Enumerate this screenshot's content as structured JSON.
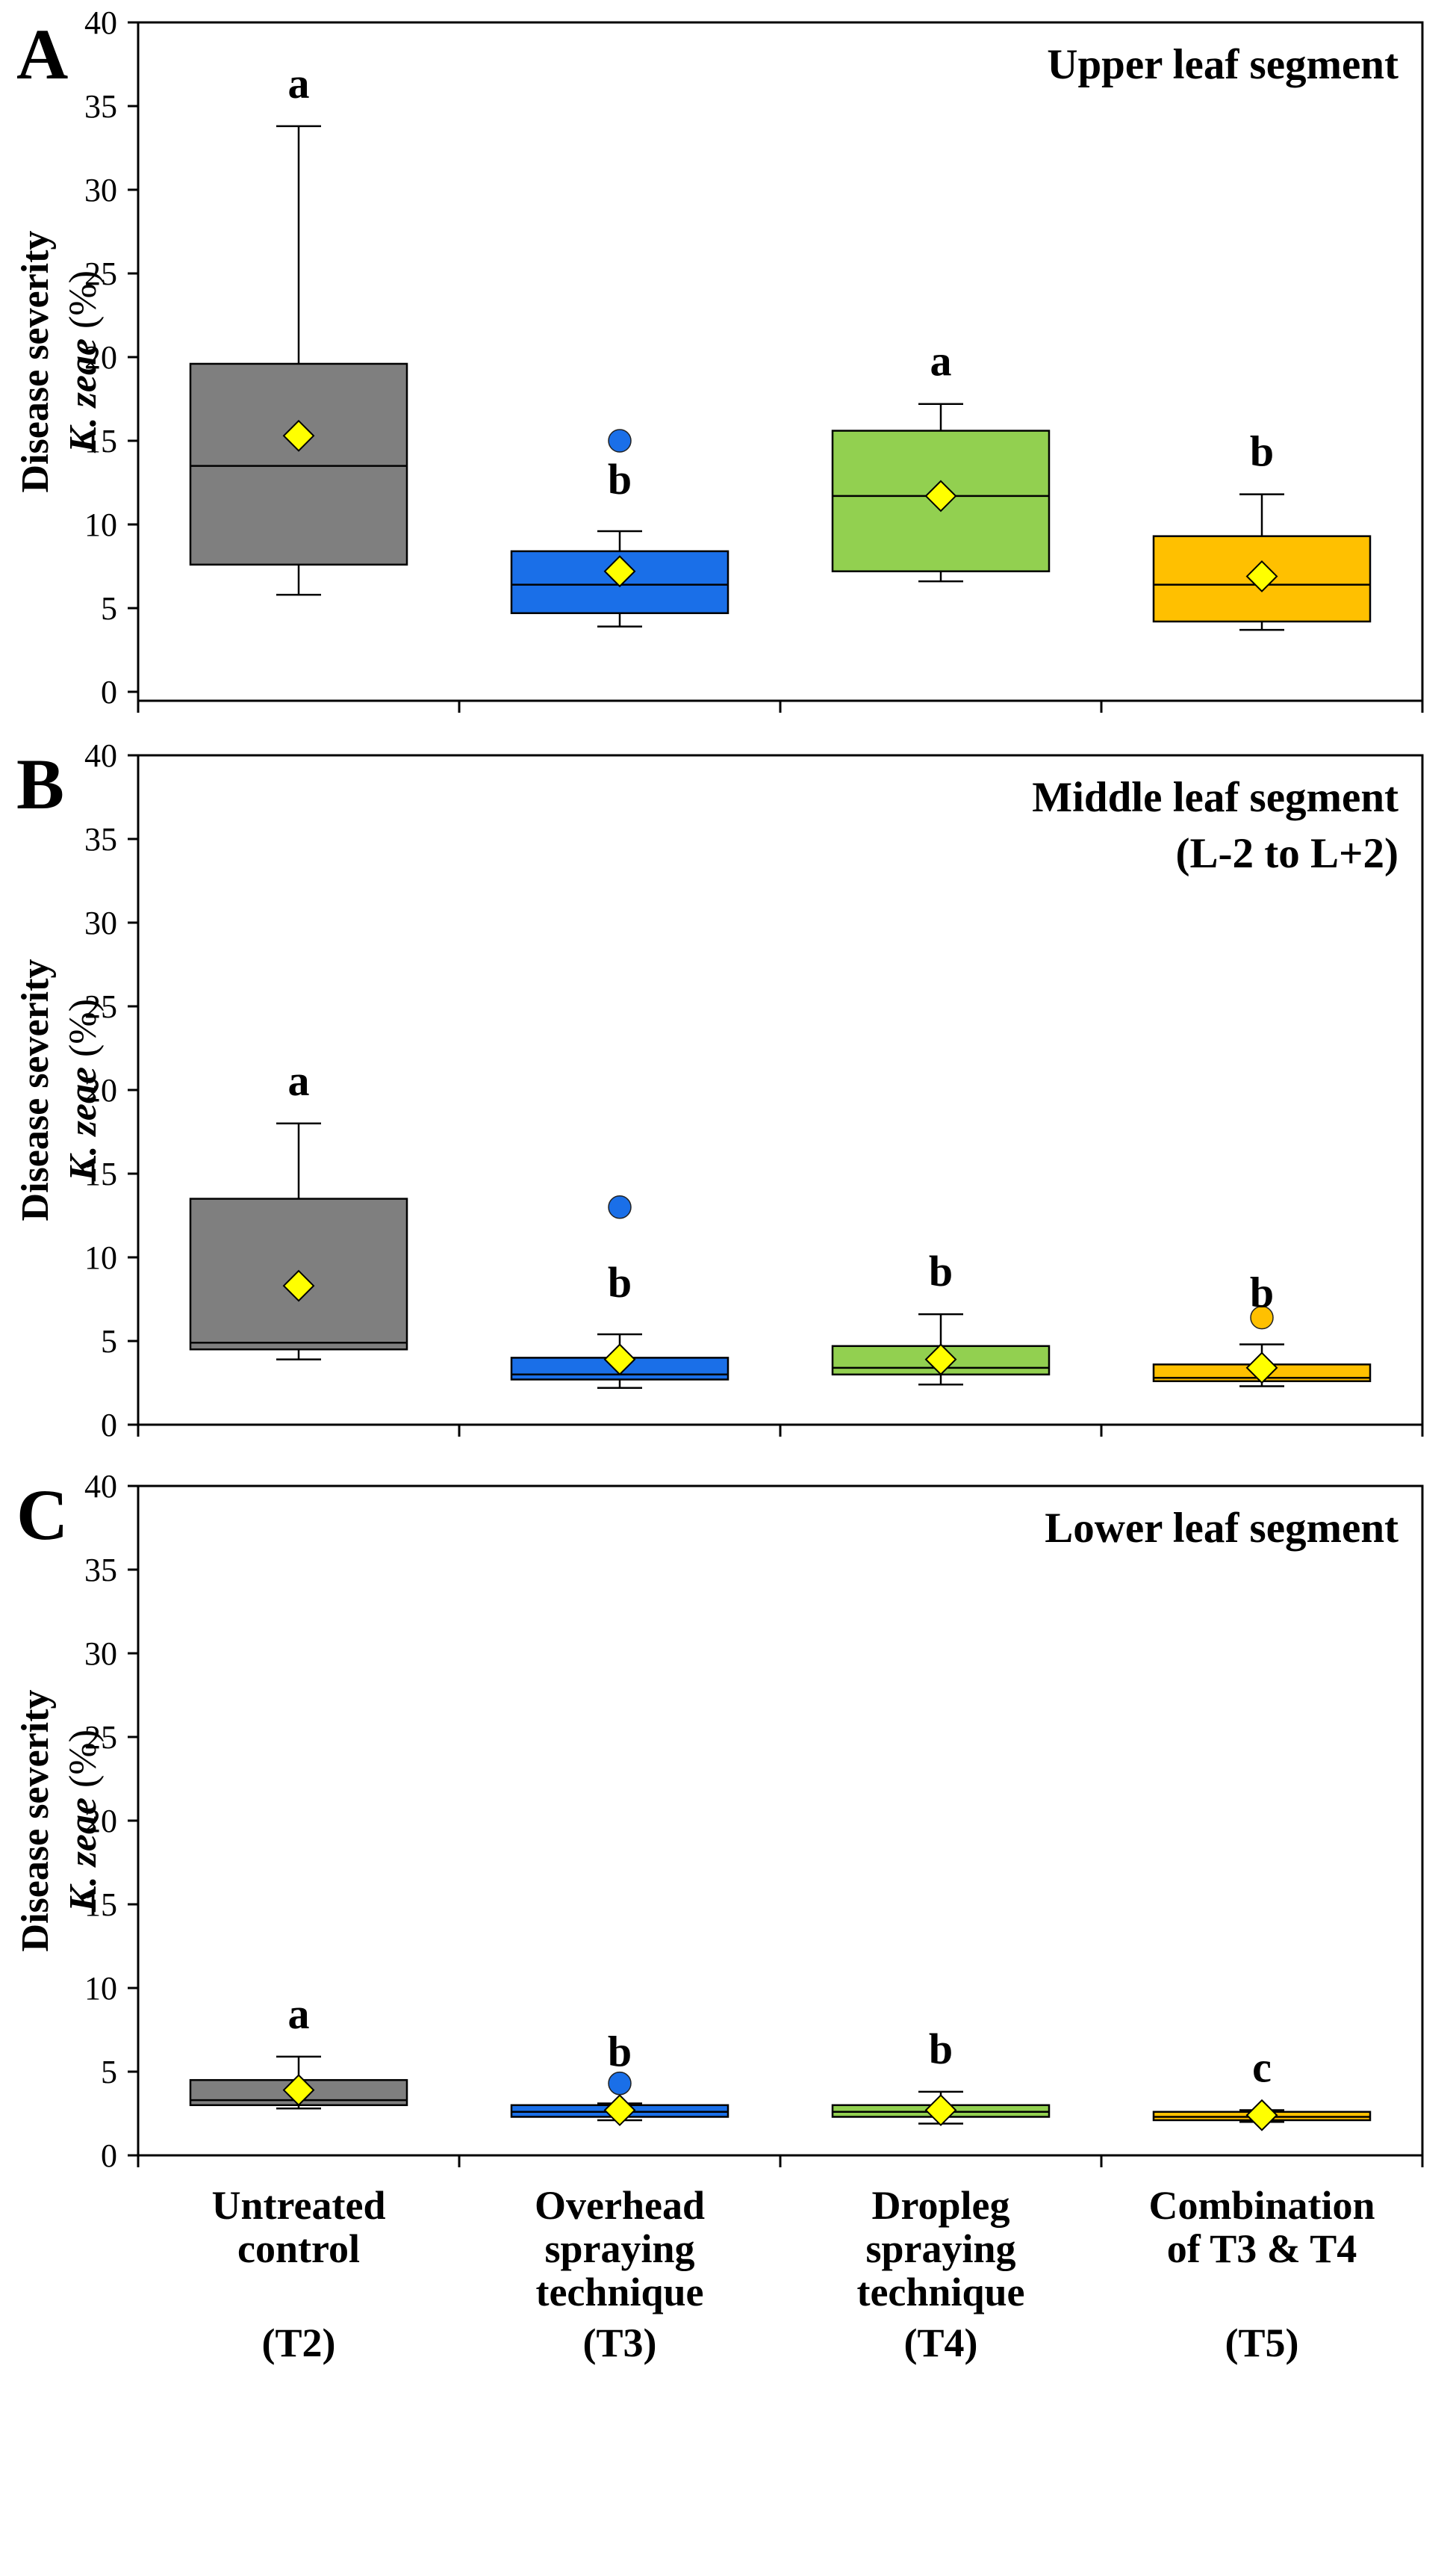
{
  "figure": {
    "x_categories": [
      {
        "lines": [
          "Untreated",
          "control"
        ],
        "code": "(T2)"
      },
      {
        "lines": [
          "Overhead",
          "spraying",
          "technique"
        ],
        "code": "(T3)"
      },
      {
        "lines": [
          "Dropleg",
          "spraying",
          "technique"
        ],
        "code": "(T4)"
      },
      {
        "lines": [
          "Combination",
          "of T3 & T4"
        ],
        "code": "(T5)"
      }
    ],
    "ylabel": {
      "line1": "Disease severity",
      "line2_italic": "K. zeae",
      "line2_unit": "(%)"
    },
    "colors": {
      "T2": "#7f7f7f",
      "T3": "#1a6fe8",
      "T4": "#92d050",
      "T5": "#ffc000",
      "mean_marker": "#ffff00"
    }
  },
  "chart_data": [
    {
      "type": "boxplot",
      "panel": "A",
      "title_lines": [
        "Upper leaf segment"
      ],
      "ylim": [
        0,
        40
      ],
      "yticks": [
        0,
        5,
        10,
        15,
        20,
        25,
        30,
        35,
        40
      ],
      "categories": [
        "T2",
        "T3",
        "T4",
        "T5"
      ],
      "boxes": [
        {
          "category": "T2",
          "whisker_low": 5.8,
          "q1": 7.6,
          "median": 13.5,
          "q3": 19.6,
          "whisker_high": 33.8,
          "mean": 15.3,
          "outliers": [],
          "letter": "a"
        },
        {
          "category": "T3",
          "whisker_low": 3.9,
          "q1": 4.7,
          "median": 6.4,
          "q3": 8.4,
          "whisker_high": 9.6,
          "mean": 7.2,
          "outliers": [
            15.0
          ],
          "letter": "b"
        },
        {
          "category": "T4",
          "whisker_low": 6.6,
          "q1": 7.2,
          "median": 11.7,
          "q3": 15.6,
          "whisker_high": 17.2,
          "mean": 11.7,
          "outliers": [],
          "letter": "a"
        },
        {
          "category": "T5",
          "whisker_low": 3.7,
          "q1": 4.2,
          "median": 6.4,
          "q3": 9.3,
          "whisker_high": 11.8,
          "mean": 6.9,
          "outliers": [],
          "letter": "b"
        }
      ]
    },
    {
      "type": "boxplot",
      "panel": "B",
      "title_lines": [
        "Middle leaf segment",
        "(L-2 to L+2)"
      ],
      "ylim": [
        0,
        40
      ],
      "yticks": [
        0,
        5,
        10,
        15,
        20,
        25,
        30,
        35,
        40
      ],
      "categories": [
        "T2",
        "T3",
        "T4",
        "T5"
      ],
      "boxes": [
        {
          "category": "T2",
          "whisker_low": 3.9,
          "q1": 4.5,
          "median": 4.9,
          "q3": 13.5,
          "whisker_high": 18.0,
          "mean": 8.3,
          "outliers": [],
          "letter": "a"
        },
        {
          "category": "T3",
          "whisker_low": 2.2,
          "q1": 2.7,
          "median": 3.0,
          "q3": 4.0,
          "whisker_high": 5.4,
          "mean": 3.9,
          "outliers": [
            13.0
          ],
          "letter": "b"
        },
        {
          "category": "T4",
          "whisker_low": 2.4,
          "q1": 3.0,
          "median": 3.4,
          "q3": 4.7,
          "whisker_high": 6.6,
          "mean": 3.9,
          "outliers": [],
          "letter": "b"
        },
        {
          "category": "T5",
          "whisker_low": 2.3,
          "q1": 2.6,
          "median": 2.8,
          "q3": 3.6,
          "whisker_high": 4.8,
          "mean": 3.4,
          "outliers": [
            6.4
          ],
          "letter": "b"
        }
      ]
    },
    {
      "type": "boxplot",
      "panel": "C",
      "title_lines": [
        "Lower leaf segment"
      ],
      "ylim": [
        0,
        40
      ],
      "yticks": [
        0,
        5,
        10,
        15,
        20,
        25,
        30,
        35,
        40
      ],
      "categories": [
        "T2",
        "T3",
        "T4",
        "T5"
      ],
      "boxes": [
        {
          "category": "T2",
          "whisker_low": 2.8,
          "q1": 3.0,
          "median": 3.3,
          "q3": 4.5,
          "whisker_high": 5.9,
          "mean": 3.9,
          "outliers": [],
          "letter": "a"
        },
        {
          "category": "T3",
          "whisker_low": 2.1,
          "q1": 2.3,
          "median": 2.6,
          "q3": 3.0,
          "whisker_high": 3.1,
          "mean": 2.7,
          "outliers": [
            4.3
          ],
          "letter": "b"
        },
        {
          "category": "T4",
          "whisker_low": 1.9,
          "q1": 2.3,
          "median": 2.6,
          "q3": 3.0,
          "whisker_high": 3.8,
          "mean": 2.7,
          "outliers": [],
          "letter": "b"
        },
        {
          "category": "T5",
          "whisker_low": 2.0,
          "q1": 2.1,
          "median": 2.3,
          "q3": 2.6,
          "whisker_high": 2.7,
          "mean": 2.4,
          "outliers": [],
          "letter": "c"
        }
      ]
    }
  ]
}
